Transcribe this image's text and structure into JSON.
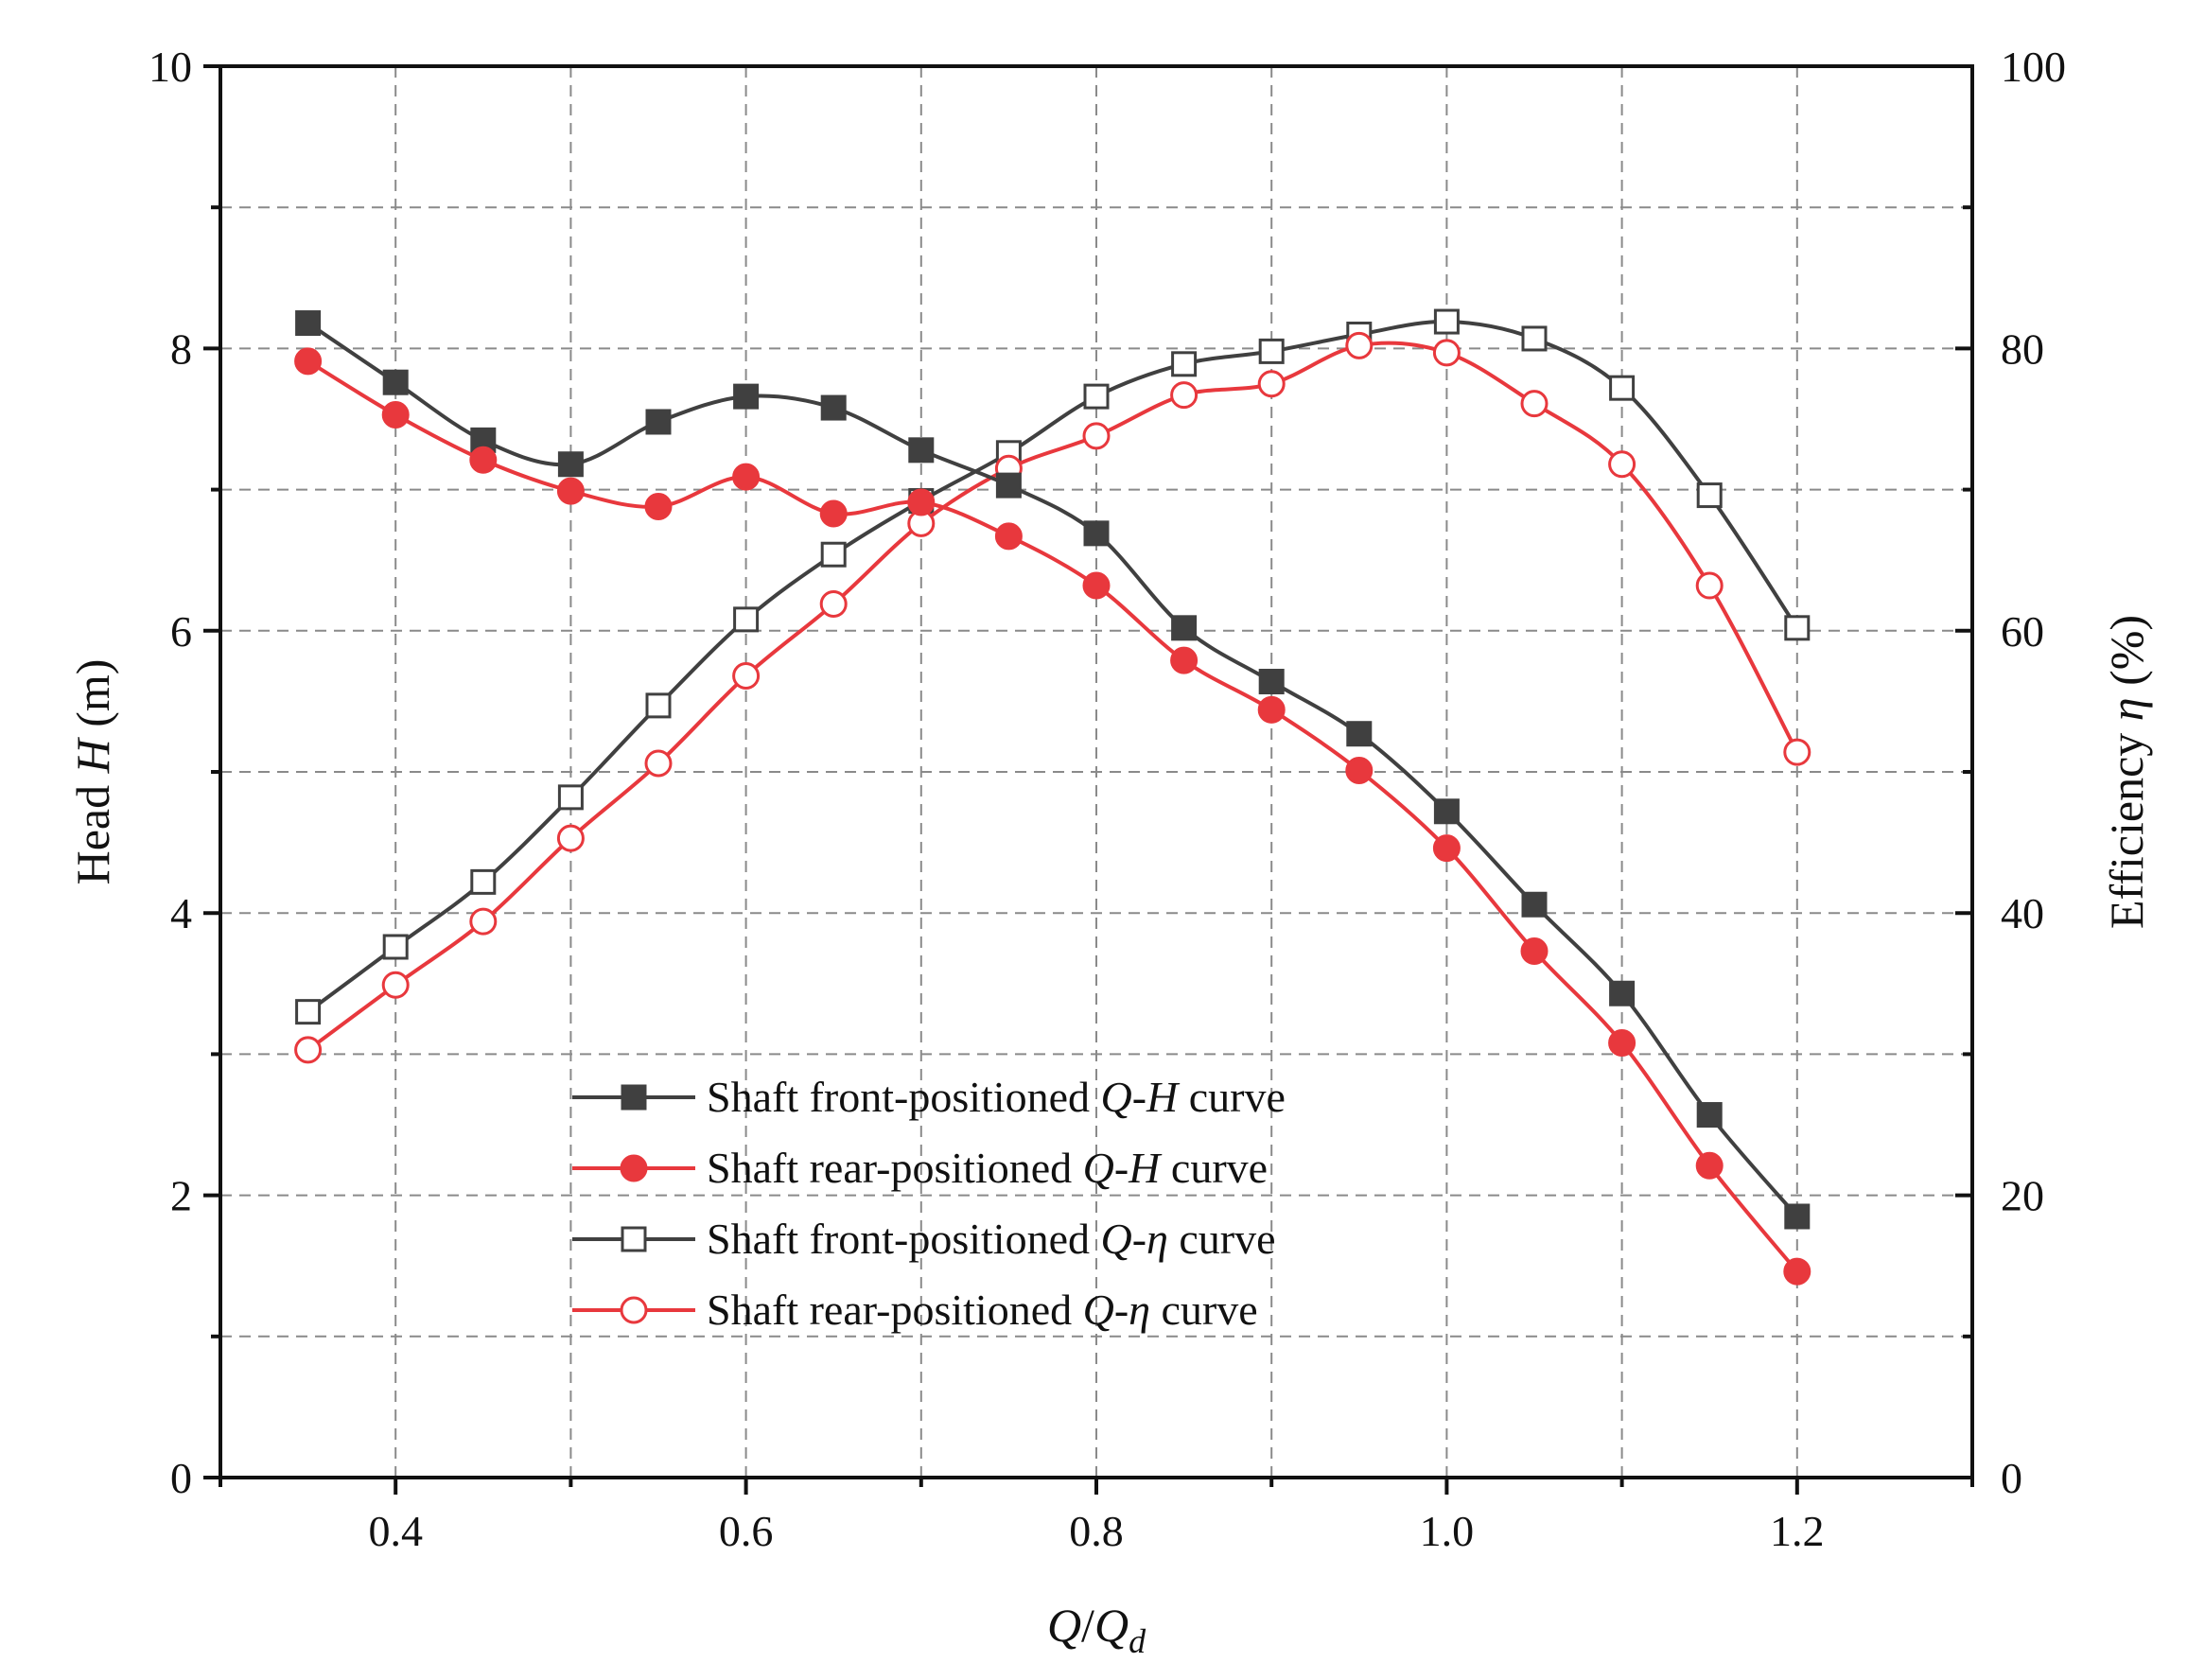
{
  "chart_data": {
    "type": "line",
    "title": "",
    "xlabel": {
      "italic": "Q",
      "slash": "/",
      "italic2": "Q",
      "subscript": "d"
    },
    "ylabel_left": {
      "pre": "Head ",
      "italic": "H",
      "post": " (m)"
    },
    "ylabel_right": {
      "pre": "Efficiency ",
      "italic": "η",
      "post": " (%)"
    },
    "xlim": [
      0.3,
      1.3
    ],
    "ylim_left": [
      0,
      10
    ],
    "ylim_right": [
      0,
      100
    ],
    "x_ticks": [
      0.4,
      0.6,
      0.8,
      1.0,
      1.2
    ],
    "x_tick_labels": [
      "0.4",
      "0.6",
      "0.8",
      "1.0",
      "1.2"
    ],
    "y_left_ticks": [
      0,
      2,
      4,
      6,
      8,
      10
    ],
    "y_left_tick_labels": [
      "0",
      "2",
      "4",
      "6",
      "8",
      "10"
    ],
    "y_right_ticks": [
      0,
      20,
      40,
      60,
      80,
      100
    ],
    "y_right_tick_labels": [
      "0",
      "20",
      "40",
      "60",
      "80",
      "100"
    ],
    "grid": true,
    "legend_position": "bottom-center",
    "x": [
      0.35,
      0.4,
      0.45,
      0.5,
      0.55,
      0.6,
      0.65,
      0.7,
      0.75,
      0.8,
      0.85,
      0.9,
      0.95,
      1.0,
      1.05,
      1.1,
      1.15,
      1.2
    ],
    "series": [
      {
        "name": "Shaft front-positioned Q-H curve",
        "legend": {
          "pre": "Shaft front-positioned ",
          "italic": "Q-H",
          "post": " curve"
        },
        "axis": "left",
        "color": "#404040",
        "marker": "square",
        "filled": true,
        "values": [
          8.18,
          7.76,
          7.35,
          7.18,
          7.48,
          7.66,
          7.58,
          7.28,
          7.03,
          6.69,
          6.02,
          5.64,
          5.27,
          4.72,
          4.06,
          3.43,
          2.57,
          1.85
        ]
      },
      {
        "name": "Shaft rear-positioned Q-H curve",
        "legend": {
          "pre": "Shaft rear-positioned ",
          "italic": "Q-H",
          "post": " curve"
        },
        "axis": "left",
        "color": "#e8383d",
        "marker": "circle",
        "filled": true,
        "values": [
          7.91,
          7.53,
          7.21,
          6.99,
          6.88,
          7.09,
          6.83,
          6.91,
          6.67,
          6.32,
          5.79,
          5.44,
          5.01,
          4.46,
          3.73,
          3.08,
          2.21,
          1.46
        ]
      },
      {
        "name": "Shaft front-positioned Q-η curve",
        "legend": {
          "pre": "Shaft front-positioned ",
          "italic": "Q-η",
          "post": " curve"
        },
        "axis": "right",
        "color": "#404040",
        "marker": "square",
        "filled": false,
        "values": [
          33.0,
          37.6,
          42.2,
          48.2,
          54.7,
          60.8,
          65.4,
          69.2,
          72.6,
          76.6,
          78.9,
          79.8,
          81.0,
          81.9,
          80.7,
          77.2,
          69.6,
          60.2
        ]
      },
      {
        "name": "Shaft rear-positioned Q-η curve",
        "legend": {
          "pre": "Shaft rear-positioned ",
          "italic": "Q-η",
          "post": " curve"
        },
        "axis": "right",
        "color": "#e8383d",
        "marker": "circle",
        "filled": false,
        "values": [
          30.3,
          34.9,
          39.4,
          45.3,
          50.6,
          56.8,
          61.9,
          67.6,
          71.5,
          73.8,
          76.7,
          77.5,
          80.2,
          79.7,
          76.1,
          71.8,
          63.2,
          51.4
        ]
      }
    ]
  }
}
